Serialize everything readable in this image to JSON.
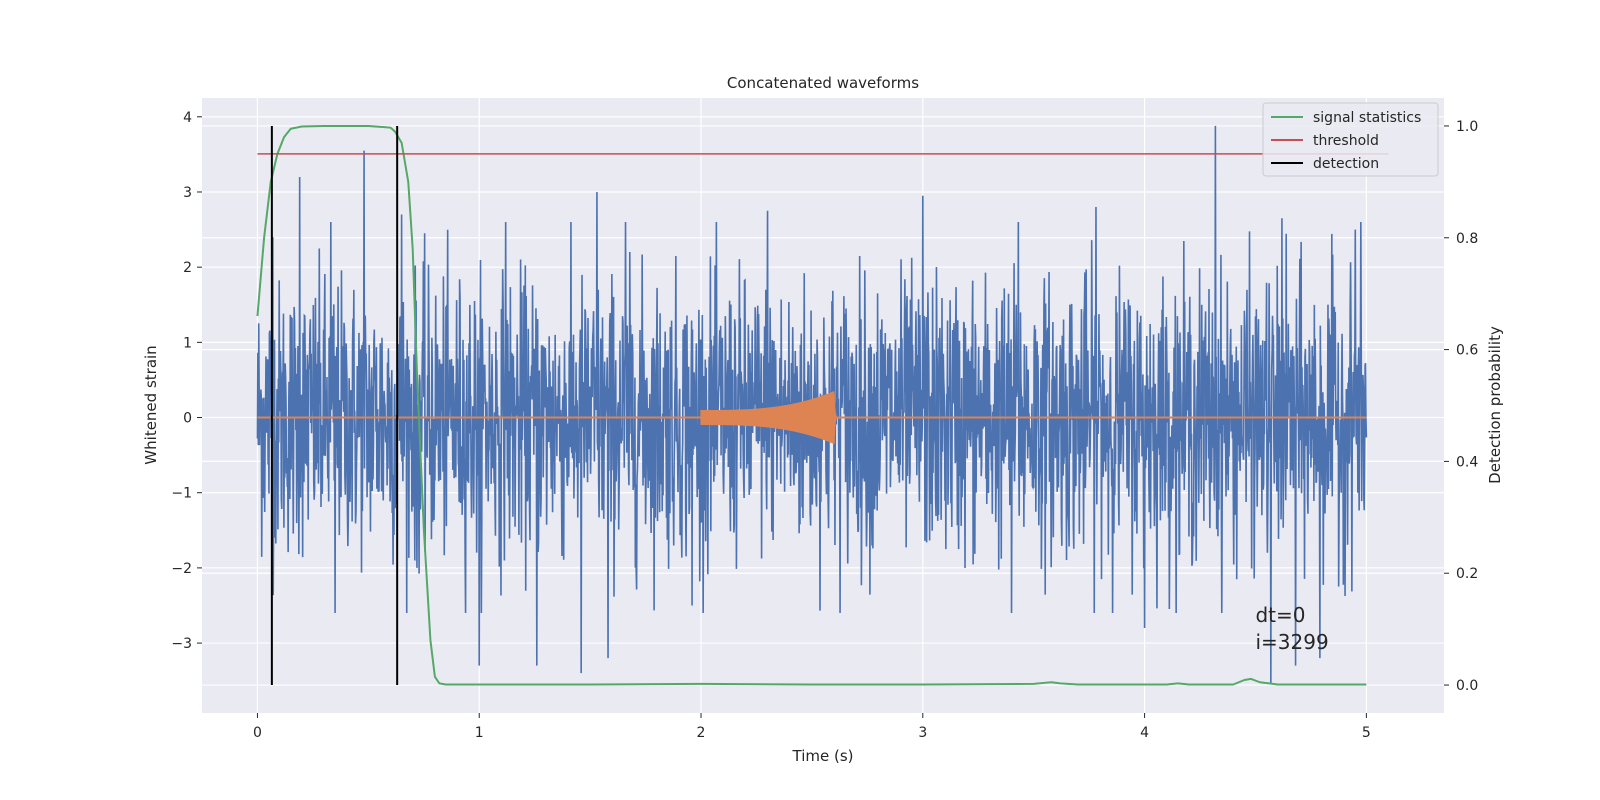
{
  "chart_data": {
    "type": "line",
    "title": "Concatenated waveforms",
    "xlabel": "Time (s)",
    "ylabel": "Whitened strain",
    "ylabel_right": "Detection probability",
    "xlim": [
      -0.25,
      5.35
    ],
    "ylim": [
      -3.93,
      4.25
    ],
    "ylim_right": [
      -0.05,
      1.05
    ],
    "x_ticks": [
      0,
      1,
      2,
      3,
      4,
      5
    ],
    "y_ticks": [
      -3,
      -2,
      -1,
      0,
      1,
      2,
      3,
      4
    ],
    "y_ticks_right": [
      0.0,
      0.2,
      0.4,
      0.6,
      0.8,
      1.0
    ],
    "y_tick_labels": [
      "−3",
      "−2",
      "−1",
      "0",
      "1",
      "2",
      "3",
      "4"
    ],
    "y_tick_labels_right": [
      "0.0",
      "0.2",
      "0.4",
      "0.6",
      "0.8",
      "1.0"
    ],
    "grid": true,
    "legend_position": "top-right",
    "series": [
      {
        "name": "",
        "axis": "left",
        "color": "#4c72b0",
        "kind": "noise",
        "x_range": [
          0,
          5
        ],
        "typical_amplitude": 1.5,
        "peaks": [
          [
            0.07,
            2.4
          ],
          [
            0.19,
            3.2
          ],
          [
            0.33,
            2.6
          ],
          [
            0.48,
            3.55
          ],
          [
            0.65,
            2.7
          ],
          [
            1.12,
            2.6
          ],
          [
            1.53,
            3.0
          ],
          [
            1.66,
            2.6
          ],
          [
            2.3,
            2.75
          ],
          [
            3.0,
            2.95
          ],
          [
            3.43,
            2.6
          ],
          [
            3.78,
            2.8
          ],
          [
            4.32,
            3.88
          ],
          [
            4.62,
            2.65
          ],
          [
            4.95,
            2.5
          ]
        ],
        "troughs": [
          [
            0.35,
            -2.6
          ],
          [
            0.72,
            -2.0
          ],
          [
            1.0,
            -3.3
          ],
          [
            1.26,
            -3.3
          ],
          [
            1.46,
            -3.4
          ],
          [
            1.58,
            -3.2
          ],
          [
            1.96,
            -2.5
          ],
          [
            3.4,
            -2.6
          ],
          [
            4.0,
            -2.8
          ],
          [
            4.57,
            -3.55
          ],
          [
            4.68,
            -3.3
          ],
          [
            4.79,
            -3.2
          ]
        ]
      },
      {
        "name": "",
        "axis": "left",
        "color": "#dd8452",
        "kind": "chirp",
        "x_range": [
          2.0,
          2.61
        ],
        "peak_time": 2.6,
        "peak_amplitude": 0.35,
        "start_amplitude": 0.1
      },
      {
        "name": "signal statistics",
        "axis": "right",
        "color": "#55a868",
        "x": [
          0,
          0.03,
          0.06,
          0.09,
          0.12,
          0.15,
          0.2,
          0.3,
          0.5,
          0.6,
          0.62,
          0.65,
          0.68,
          0.7,
          0.72,
          0.75,
          0.78,
          0.8,
          0.82,
          0.85,
          1.0,
          1.5,
          2.0,
          2.5,
          3.0,
          3.5,
          3.55,
          3.58,
          3.62,
          3.7,
          4.1,
          4.15,
          4.2,
          4.4,
          4.45,
          4.48,
          4.52,
          4.6,
          5.0
        ],
        "y": [
          0.66,
          0.8,
          0.9,
          0.95,
          0.98,
          0.995,
          0.999,
          1.0,
          1.0,
          0.997,
          0.99,
          0.97,
          0.9,
          0.78,
          0.55,
          0.28,
          0.08,
          0.015,
          0.003,
          0.001,
          0.001,
          0.001,
          0.002,
          0.001,
          0.001,
          0.002,
          0.004,
          0.005,
          0.003,
          0.001,
          0.001,
          0.003,
          0.001,
          0.001,
          0.009,
          0.011,
          0.005,
          0.001,
          0.001
        ]
      },
      {
        "name": "threshold",
        "axis": "right",
        "color": "#c44e52",
        "x": [
          0,
          5.1
        ],
        "y": [
          0.95,
          0.95
        ]
      }
    ],
    "detections": {
      "name": "detection",
      "color": "#000000",
      "x": [
        0.065,
        0.63
      ],
      "ymin": 0.0,
      "ymax": 1.0
    },
    "annotations": [
      {
        "text": "dt=0",
        "x": 4.5,
        "y": -2.72
      },
      {
        "text": "i=3299",
        "x": 4.5,
        "y": -3.08
      }
    ]
  }
}
